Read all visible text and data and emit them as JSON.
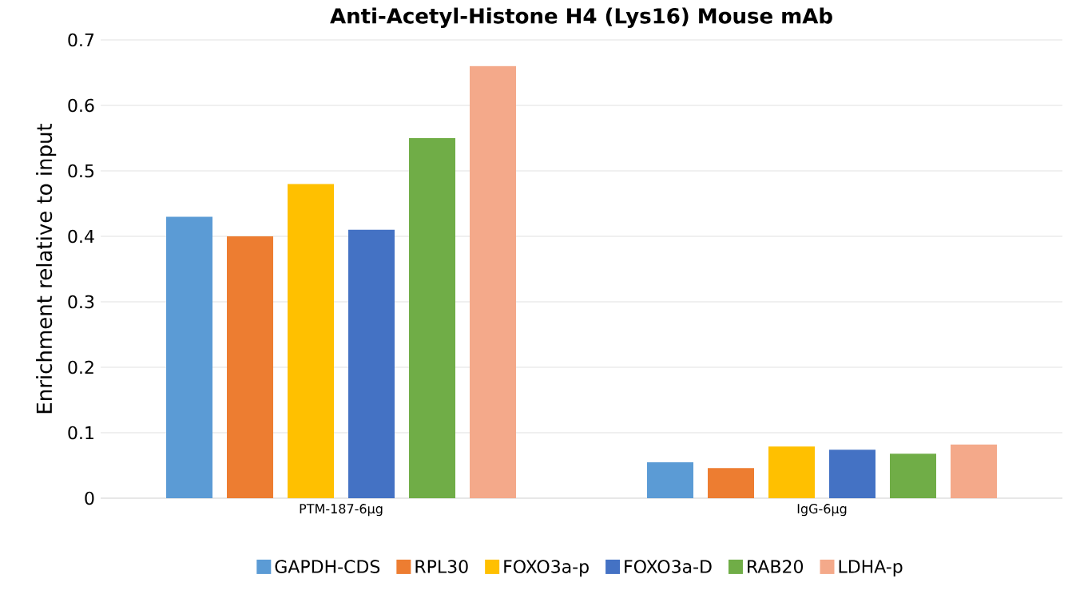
{
  "chart_data": {
    "type": "bar",
    "title": "Anti-Acetyl-Histone H4 (Lys16) Mouse mAb",
    "ylabel": "Enrichment relative to input",
    "categories": [
      "PTM-187-6μg",
      "IgG-6μg"
    ],
    "series": [
      {
        "name": "GAPDH-CDS",
        "color": "#5b9bd5",
        "values": [
          0.43,
          0.055
        ]
      },
      {
        "name": "RPL30",
        "color": "#ed7d31",
        "values": [
          0.4,
          0.046
        ]
      },
      {
        "name": "FOXO3a-p",
        "color": "#ffc000",
        "values": [
          0.48,
          0.079
        ]
      },
      {
        "name": "FOXO3a-D",
        "color": "#4472c4",
        "values": [
          0.41,
          0.074
        ]
      },
      {
        "name": "RAB20",
        "color": "#70ad47",
        "values": [
          0.55,
          0.068
        ]
      },
      {
        "name": "LDHA-p",
        "color": "#f4a98a",
        "values": [
          0.66,
          0.082
        ]
      }
    ],
    "ylim": [
      0,
      0.7
    ],
    "yticks": [
      0,
      0.1,
      0.2,
      0.3,
      0.4,
      0.5,
      0.6,
      0.7
    ],
    "grid": "y",
    "legend": "bottom"
  }
}
